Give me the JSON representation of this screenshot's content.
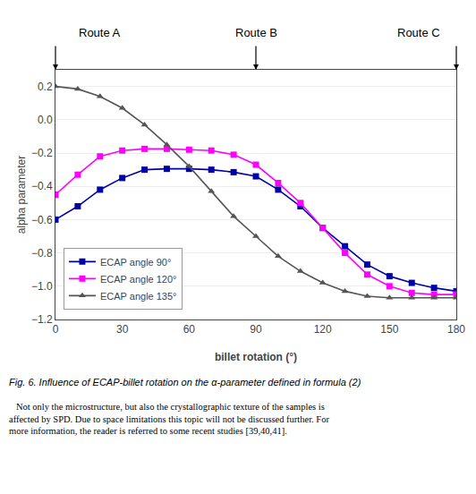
{
  "chart_data": {
    "type": "line",
    "xlabel": "billet rotation (°)",
    "ylabel": "alpha parameter",
    "x": [
      0,
      10,
      20,
      30,
      40,
      50,
      60,
      70,
      80,
      90,
      100,
      110,
      120,
      130,
      140,
      150,
      160,
      170,
      180
    ],
    "xlim": [
      0,
      180
    ],
    "ylim": [
      -1.2,
      0.3
    ],
    "xticks": [
      0,
      30,
      60,
      90,
      120,
      150,
      180
    ],
    "yticks": [
      {
        "value": -1.2,
        "label": "−1.2"
      },
      {
        "value": -1.0,
        "label": "−1.0"
      },
      {
        "value": -0.8,
        "label": "−0.8"
      },
      {
        "value": -0.6,
        "label": "−0.6"
      },
      {
        "value": -0.4,
        "label": "−0.4"
      },
      {
        "value": -0.2,
        "label": "−0.2"
      },
      {
        "value": 0.0,
        "label": "0.0"
      },
      {
        "value": 0.2,
        "label": "0.2"
      }
    ],
    "grid": "y",
    "legend": "lower left",
    "series": [
      {
        "name": "ECAP angle 90°",
        "color": "#0000AA",
        "marker": "square",
        "values": [
          -0.6,
          -0.52,
          -0.42,
          -0.35,
          -0.3,
          -0.295,
          -0.295,
          -0.3,
          -0.315,
          -0.34,
          -0.42,
          -0.52,
          -0.65,
          -0.76,
          -0.87,
          -0.94,
          -0.98,
          -1.01,
          -1.03
        ]
      },
      {
        "name": "ECAP angle 120°",
        "color": "#FF00FF",
        "marker": "square",
        "values": [
          -0.45,
          -0.33,
          -0.22,
          -0.185,
          -0.175,
          -0.175,
          -0.18,
          -0.185,
          -0.21,
          -0.27,
          -0.38,
          -0.5,
          -0.65,
          -0.8,
          -0.93,
          -1.0,
          -1.04,
          -1.05,
          -1.05
        ]
      },
      {
        "name": "ECAP angle 135°",
        "color": "#555555",
        "marker": "triangle-up",
        "values": [
          0.2,
          0.185,
          0.14,
          0.07,
          -0.03,
          -0.15,
          -0.28,
          -0.43,
          -0.58,
          -0.7,
          -0.82,
          -0.91,
          -0.98,
          -1.03,
          -1.06,
          -1.07,
          -1.07,
          -1.07,
          -1.07
        ]
      }
    ],
    "annotations": [
      {
        "text": "Route A",
        "x": 20
      },
      {
        "text": "Route B",
        "x": 90
      },
      {
        "text": "Route C",
        "x": 163
      }
    ],
    "arrows_x": [
      0,
      90,
      180
    ],
    "caption": "Fig. 6. Influence of ECAP-billet rotation on the α-parameter defined in formula (2)",
    "body_text": "   Not only the microstructure, but also the crystallographic texture of the samples is\naffected by SPD. Due to space limitations this topic will not be discussed further. For\nmore information, the reader is referred to some recent studies [39,40,41]."
  }
}
